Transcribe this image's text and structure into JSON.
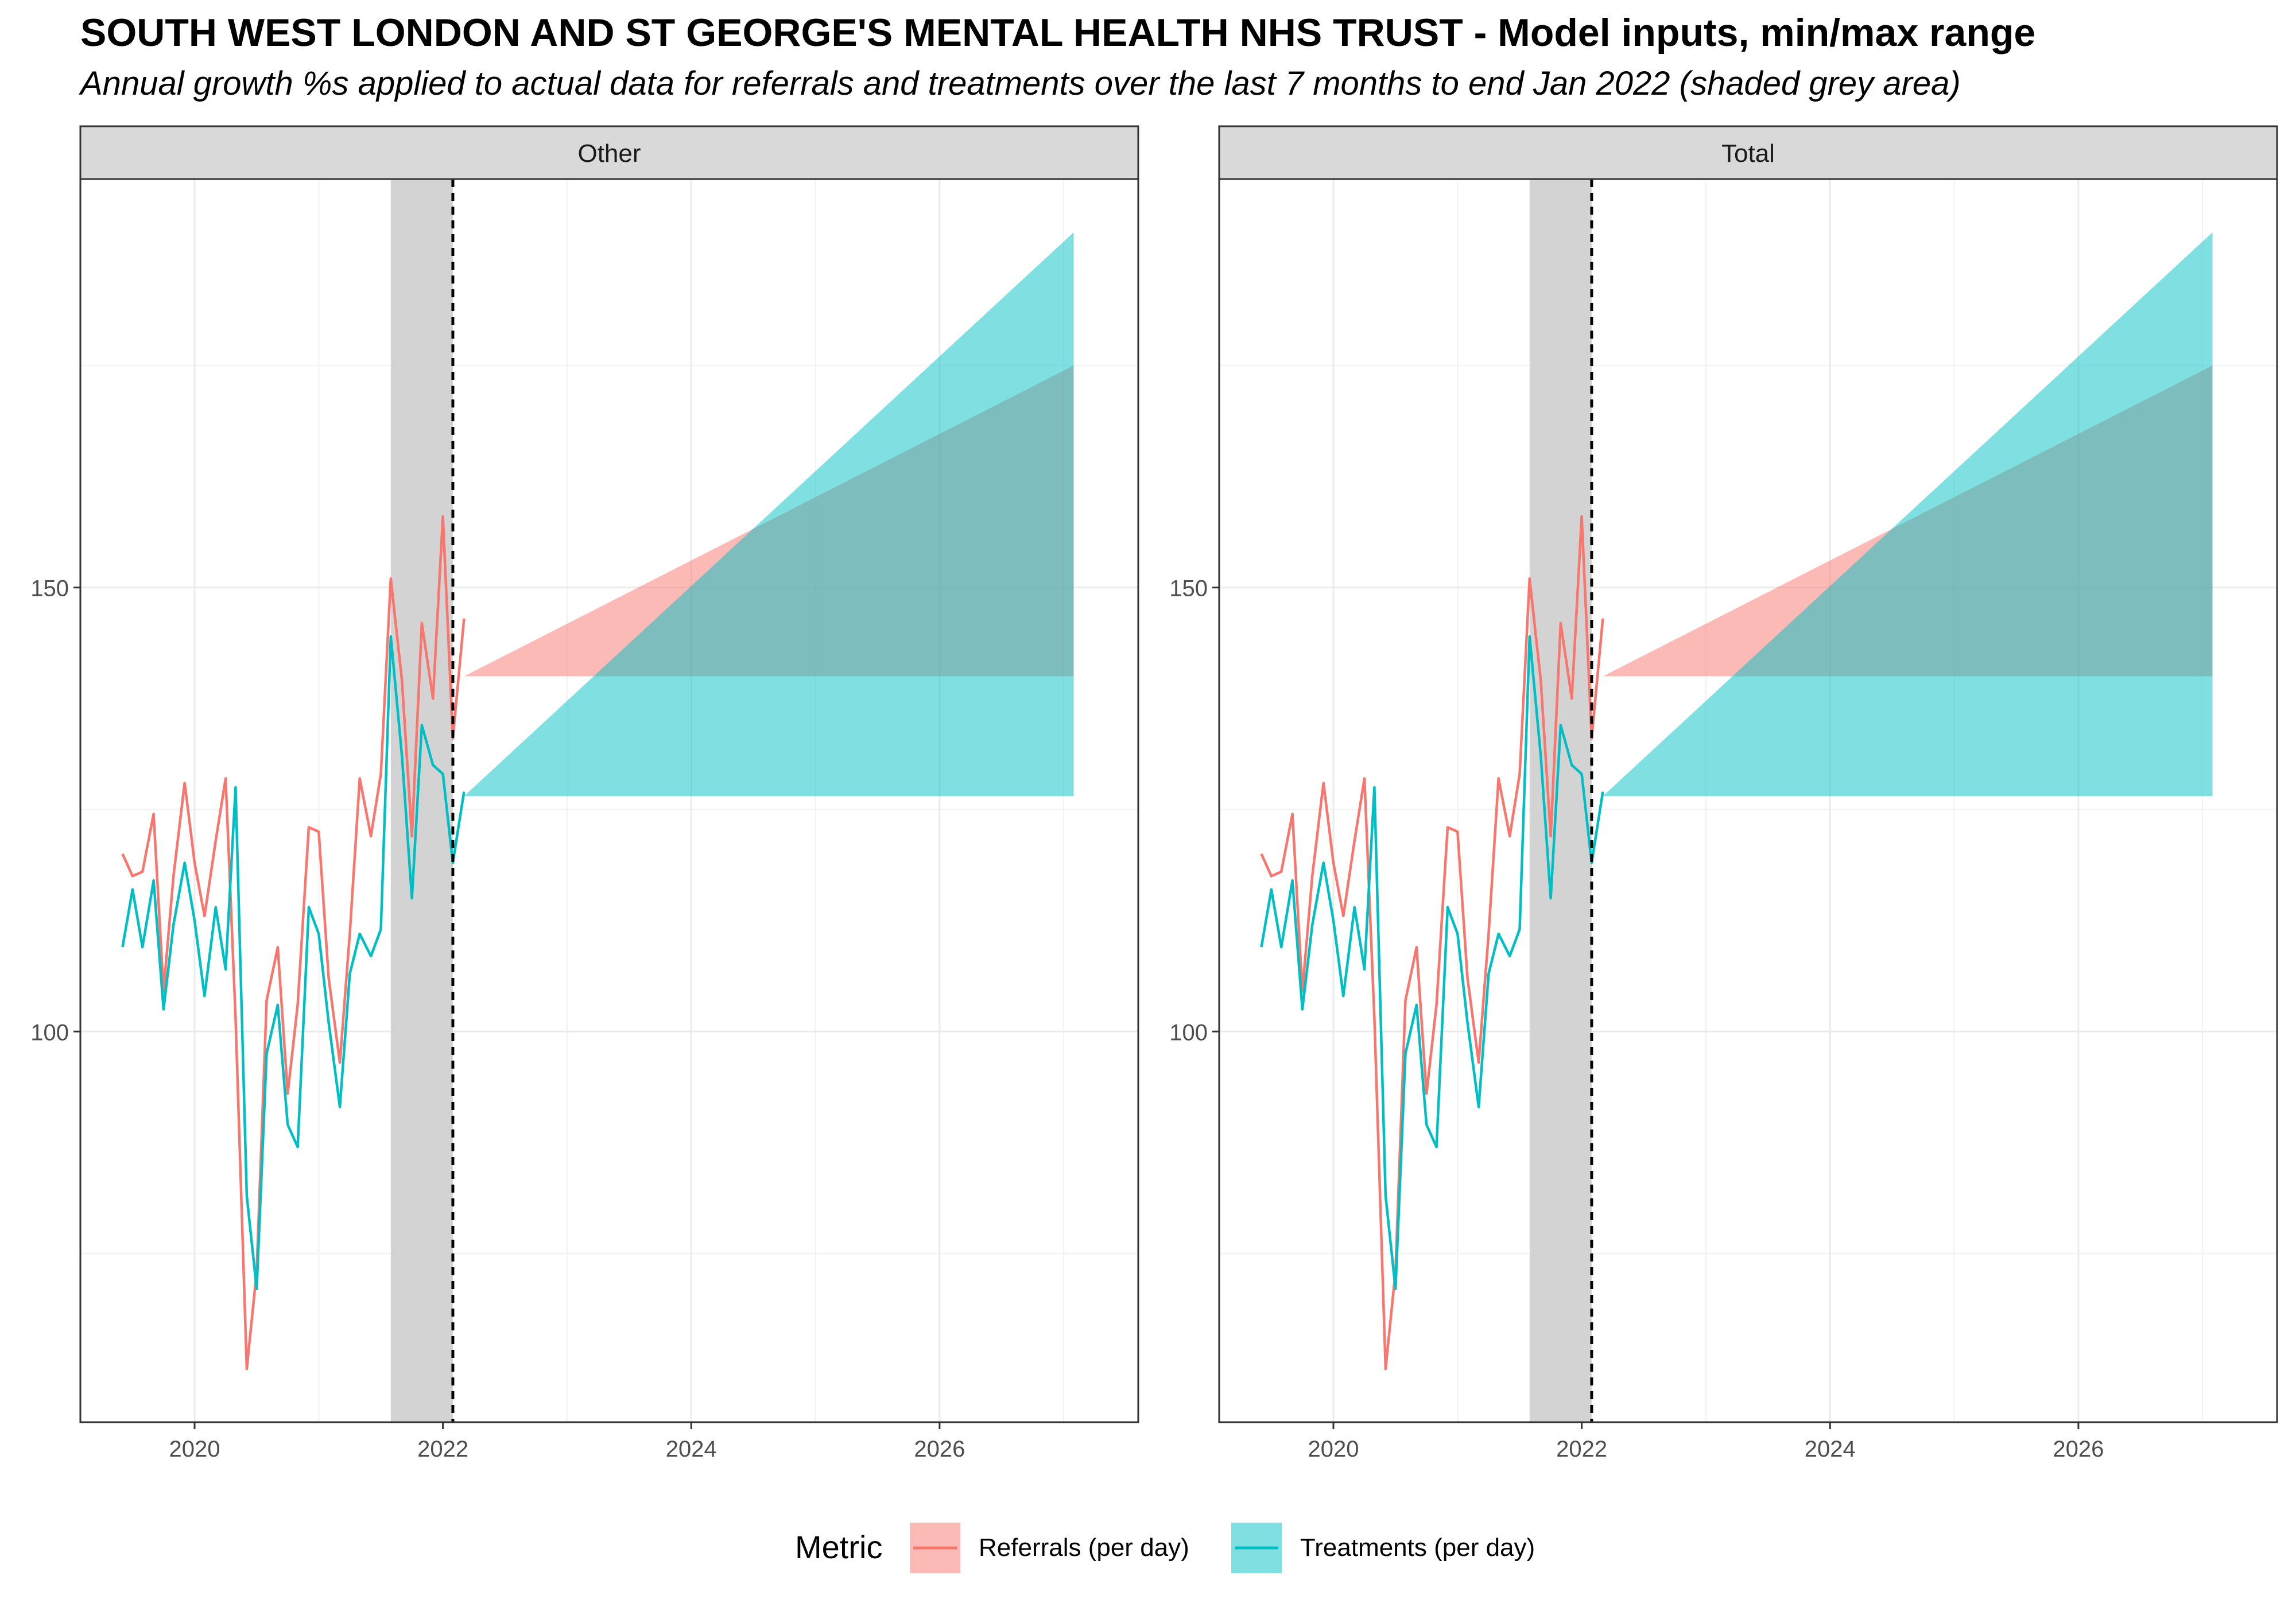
{
  "title": "SOUTH WEST LONDON AND ST GEORGE'S MENTAL HEALTH NHS TRUST - Model inputs, min/max range",
  "subtitle": "Annual growth %s applied to actual data for referrals and treatments over the last 7 months to end Jan 2022 (shaded grey area)",
  "chart_data": {
    "type": "line",
    "facets": [
      "Other",
      "Total"
    ],
    "x_ticks": [
      2020,
      2022,
      2024,
      2026
    ],
    "y_ticks": [
      100,
      150
    ],
    "xlim": [
      2019.08,
      2027.6
    ],
    "ylim": [
      56,
      196
    ],
    "grid": true,
    "shaded_period": {
      "from": 2021.58,
      "to": 2022.08
    },
    "dashed_line_x": 2022.08,
    "legend": {
      "title": "Metric",
      "position": "bottom",
      "items": [
        "Referrals (per day)",
        "Treatments (per day)"
      ]
    },
    "colors": {
      "referrals": "#F8766D",
      "treatments": "#00BFC4",
      "shade": "#D3D3D3",
      "strip": "#D9D9D9"
    },
    "series": [
      {
        "name": "Referrals (per day)",
        "color": "#F8766D",
        "points": [
          [
            2019.42,
            120
          ],
          [
            2019.5,
            117.5
          ],
          [
            2019.58,
            118
          ],
          [
            2019.67,
            124.5
          ],
          [
            2019.75,
            104.5
          ],
          [
            2019.83,
            117.5
          ],
          [
            2019.92,
            128
          ],
          [
            2020.0,
            119
          ],
          [
            2020.08,
            113
          ],
          [
            2020.17,
            121.5
          ],
          [
            2020.25,
            128.5
          ],
          [
            2020.33,
            101.5
          ],
          [
            2020.42,
            62
          ],
          [
            2020.5,
            73
          ],
          [
            2020.58,
            103.5
          ],
          [
            2020.67,
            109.5
          ],
          [
            2020.75,
            93
          ],
          [
            2020.83,
            103
          ],
          [
            2020.92,
            123
          ],
          [
            2021.0,
            122.5
          ],
          [
            2021.08,
            106
          ],
          [
            2021.17,
            96.5
          ],
          [
            2021.25,
            111
          ],
          [
            2021.33,
            128.5
          ],
          [
            2021.42,
            122
          ],
          [
            2021.5,
            129
          ],
          [
            2021.58,
            151
          ],
          [
            2021.67,
            139.5
          ],
          [
            2021.75,
            122
          ],
          [
            2021.83,
            146
          ],
          [
            2021.92,
            137.5
          ],
          [
            2022.0,
            158
          ],
          [
            2022.08,
            133
          ],
          [
            2022.17,
            146.5
          ]
        ]
      },
      {
        "name": "Treatments (per day)",
        "color": "#00BFC4",
        "points": [
          [
            2019.42,
            109.5
          ],
          [
            2019.5,
            116
          ],
          [
            2019.58,
            109.5
          ],
          [
            2019.67,
            117
          ],
          [
            2019.75,
            102.5
          ],
          [
            2019.83,
            112
          ],
          [
            2019.92,
            119
          ],
          [
            2020.0,
            112.5
          ],
          [
            2020.08,
            104
          ],
          [
            2020.17,
            114
          ],
          [
            2020.25,
            107
          ],
          [
            2020.33,
            127.5
          ],
          [
            2020.42,
            81.5
          ],
          [
            2020.5,
            71
          ],
          [
            2020.58,
            97.5
          ],
          [
            2020.67,
            103
          ],
          [
            2020.75,
            89.5
          ],
          [
            2020.83,
            87
          ],
          [
            2020.92,
            114
          ],
          [
            2021.0,
            111
          ],
          [
            2021.08,
            101
          ],
          [
            2021.17,
            91.5
          ],
          [
            2021.25,
            106.5
          ],
          [
            2021.33,
            111
          ],
          [
            2021.42,
            108.5
          ],
          [
            2021.5,
            111.5
          ],
          [
            2021.58,
            144.5
          ],
          [
            2021.67,
            131
          ],
          [
            2021.75,
            115
          ],
          [
            2021.83,
            134.5
          ],
          [
            2021.92,
            130
          ],
          [
            2022.0,
            129
          ],
          [
            2022.08,
            119
          ],
          [
            2022.17,
            127
          ]
        ]
      }
    ],
    "projection_ranges": [
      {
        "name": "Referrals (per day)",
        "color": "#F8766D",
        "from": 2022.17,
        "to": 2027.08,
        "start": 140,
        "max_end": 175,
        "min_end": 140
      },
      {
        "name": "Treatments (per day)",
        "color": "#00BFC4",
        "from": 2022.17,
        "to": 2027.08,
        "start": 126.5,
        "max_end": 190,
        "min_end": 126.5
      }
    ]
  }
}
